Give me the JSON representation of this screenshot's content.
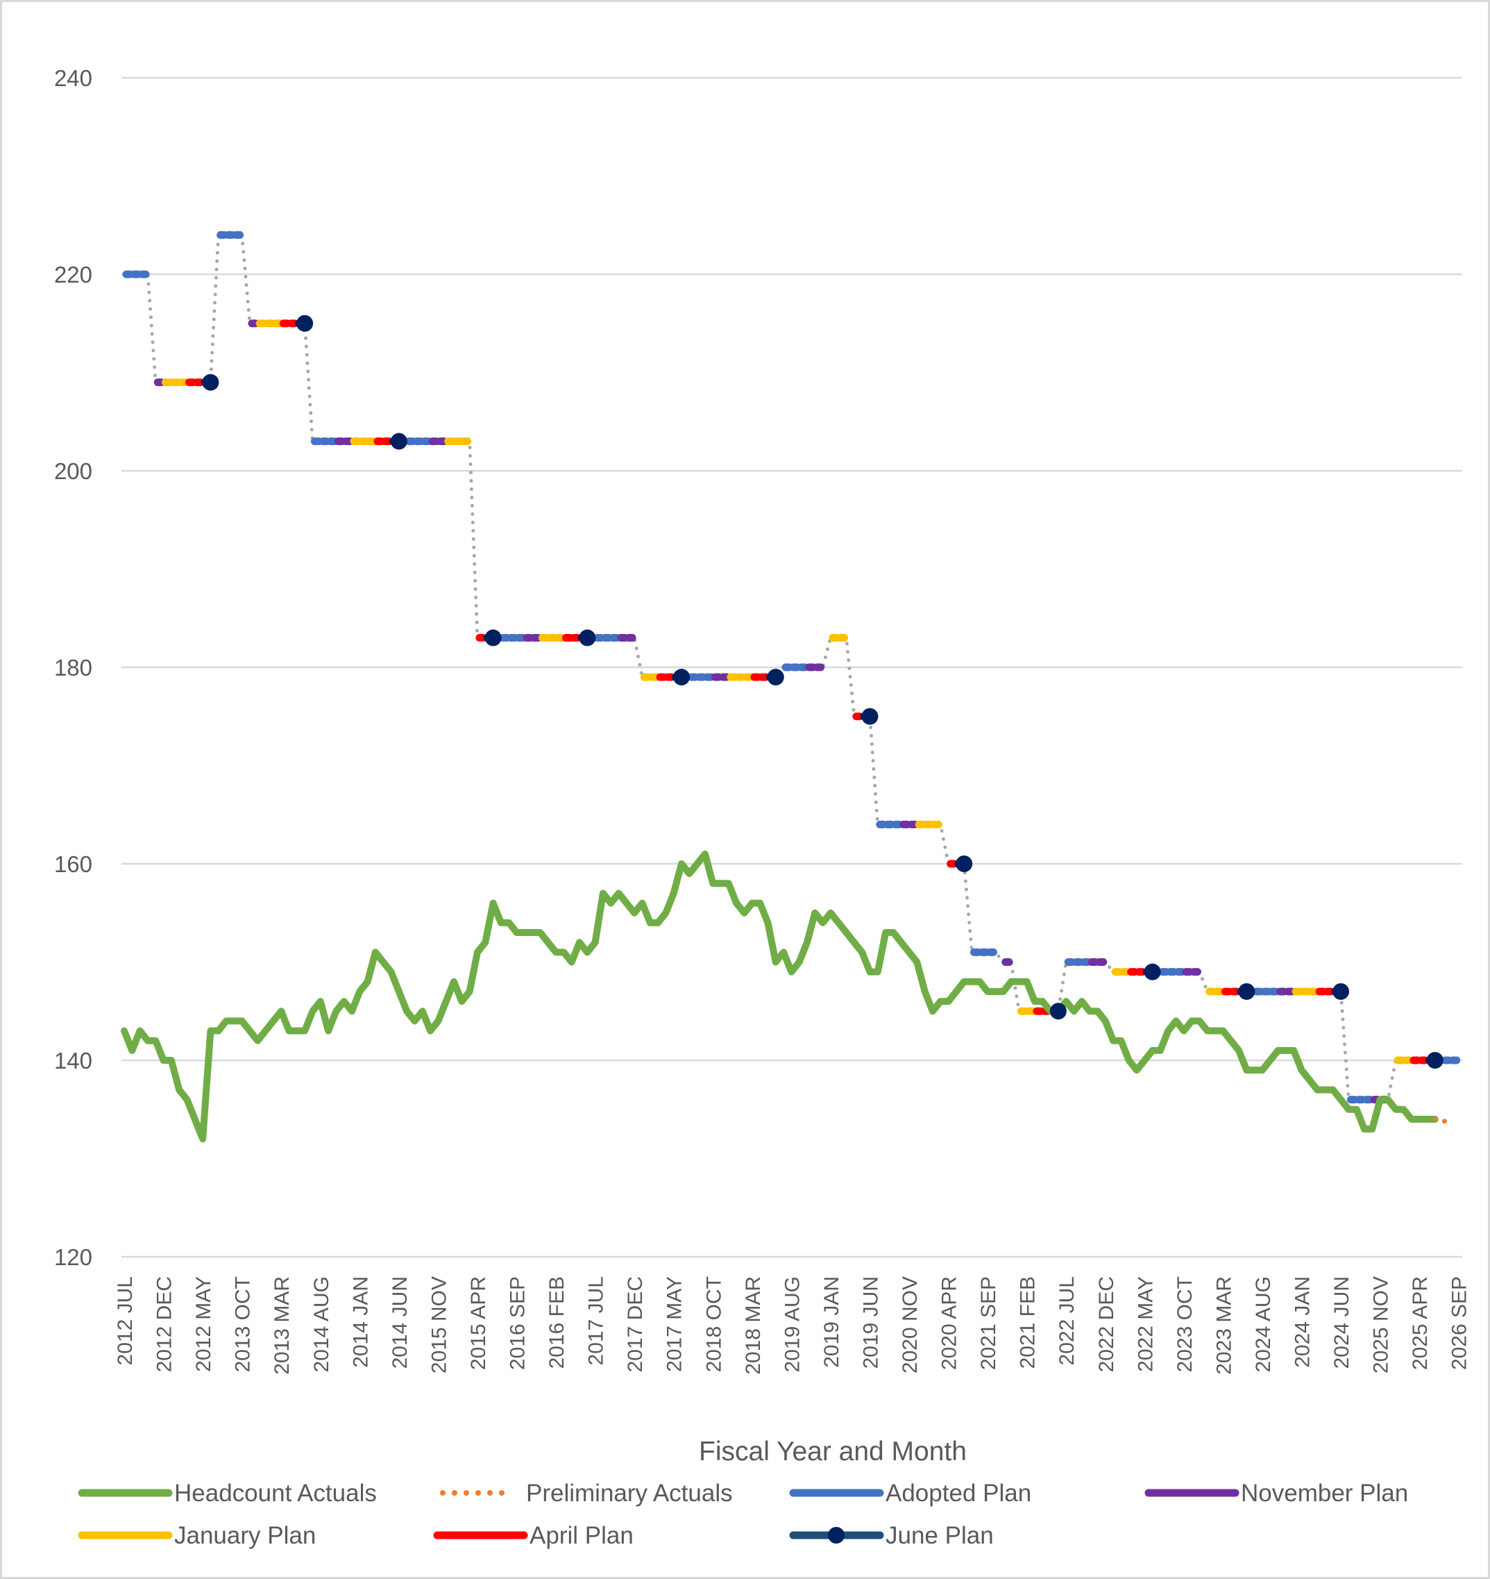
{
  "chart_data": {
    "type": "line",
    "title": "",
    "xlabel": "Fiscal Year and Month",
    "ylabel": "",
    "ylim": [
      120,
      240
    ],
    "yticks": [
      120,
      140,
      160,
      180,
      200,
      220,
      240
    ],
    "grid": true,
    "legend_position": "bottom",
    "x_tick_labels": [
      "2012 JUL",
      "2012 DEC",
      "2012 MAY",
      "2013 OCT",
      "2013 MAR",
      "2014 AUG",
      "2014 JAN",
      "2014 JUN",
      "2015 NOV",
      "2015 APR",
      "2016 SEP",
      "2016 FEB",
      "2017 JUL",
      "2017 DEC",
      "2017 MAY",
      "2018 OCT",
      "2018 MAR",
      "2019 AUG",
      "2019 JAN",
      "2019 JUN",
      "2020 NOV",
      "2020 APR",
      "2021 SEP",
      "2021 FEB",
      "2022 JUL",
      "2022 DEC",
      "2022 MAY",
      "2023 OCT",
      "2023 MAR",
      "2024 AUG",
      "2024 JAN",
      "2024 JUN",
      "2025 NOV",
      "2025 APR",
      "2026 SEP"
    ],
    "x_tick_every_months": 5,
    "n_months": 171,
    "colors": {
      "actuals": "#70ad47",
      "preliminary": "#ed7d31",
      "adopted": "#4472c4",
      "november": "#7030a0",
      "january": "#ffc000",
      "april": "#ff0000",
      "june": "#002060",
      "connector": "#a6a6a6",
      "grid": "#d9d9d9"
    },
    "series": [
      {
        "name": "Headcount Actuals",
        "key": "actuals",
        "start_month": 0,
        "values": [
          143,
          141,
          143,
          142,
          142,
          140,
          140,
          137,
          136,
          134,
          132,
          143,
          143,
          144,
          144,
          144,
          143,
          142,
          143,
          144,
          145,
          143,
          143,
          143,
          145,
          146,
          143,
          145,
          146,
          145,
          147,
          148,
          151,
          150,
          149,
          147,
          145,
          144,
          145,
          143,
          144,
          146,
          148,
          146,
          147,
          151,
          152,
          156,
          154,
          154,
          153,
          153,
          153,
          153,
          152,
          151,
          151,
          150,
          152,
          151,
          152,
          157,
          156,
          157,
          156,
          155,
          156,
          154,
          154,
          155,
          157,
          160,
          159,
          160,
          161,
          158,
          158,
          158,
          156,
          155,
          156,
          156,
          154,
          150,
          151,
          149,
          150,
          152,
          155,
          154,
          155,
          154,
          153,
          152,
          151,
          149,
          149,
          153,
          153,
          152,
          151,
          150,
          147,
          145,
          146,
          146,
          147,
          148,
          148,
          148,
          147,
          147,
          147,
          148,
          148,
          148,
          146,
          146,
          145,
          145,
          146,
          145,
          146,
          145,
          145,
          144,
          142,
          142,
          140,
          139,
          140,
          141,
          141,
          143,
          144,
          143,
          144,
          144,
          143,
          143,
          143,
          142,
          141,
          139,
          139,
          139,
          140,
          141,
          141,
          141,
          139,
          138,
          137,
          137,
          137,
          136,
          135,
          135,
          133,
          133,
          136,
          136,
          135,
          135,
          134,
          134,
          134,
          134
        ]
      },
      {
        "name": "Preliminary Actuals",
        "key": "preliminary",
        "start_month": 167,
        "values": [
          134,
          134,
          133
        ]
      }
    ],
    "plan_years": [
      {
        "start_month": 0,
        "adopted": 220,
        "november": 209,
        "january": 209,
        "april": 209,
        "june": 209
      },
      {
        "start_month": 12,
        "adopted": 224,
        "november": 215,
        "january": 215,
        "april": 215,
        "june": 215
      },
      {
        "start_month": 24,
        "adopted": 203,
        "november": 203,
        "january": 203,
        "april": 203,
        "june": 203
      },
      {
        "start_month": 36,
        "adopted": 203,
        "november": 203,
        "january": 203,
        "april": 183,
        "june": 183
      },
      {
        "start_month": 48,
        "adopted": 183,
        "november": 183,
        "january": 183,
        "april": 183,
        "june": 183
      },
      {
        "start_month": 60,
        "adopted": 183,
        "november": 183,
        "january": 179,
        "april": 179,
        "june": 179
      },
      {
        "start_month": 72,
        "adopted": 179,
        "november": 179,
        "january": 179,
        "april": 179,
        "june": 179
      },
      {
        "start_month": 84,
        "adopted": 180,
        "november": 180,
        "january": 183,
        "april": 175,
        "june": 175
      },
      {
        "start_month": 96,
        "adopted": 164,
        "november": 164,
        "january": 164,
        "april": 160,
        "june": 160
      },
      {
        "start_month": 108,
        "adopted": 151,
        "november": 150,
        "january": 145,
        "april": 145,
        "june": 145
      },
      {
        "start_month": 120,
        "adopted": 150,
        "november": 150,
        "january": 149,
        "april": 149,
        "june": 149
      },
      {
        "start_month": 132,
        "adopted": 149,
        "november": 149,
        "january": 147,
        "april": 147,
        "june": 147
      },
      {
        "start_month": 144,
        "adopted": 147,
        "november": 147,
        "january": 147,
        "april": 147,
        "june": 147
      },
      {
        "start_month": 156,
        "adopted": 136,
        "november": 136,
        "january": 140,
        "april": 140,
        "june": 140
      },
      {
        "start_month": 168,
        "adopted": 140
      }
    ],
    "legend": [
      {
        "label": "Headcount Actuals",
        "key": "actuals",
        "style": "solid"
      },
      {
        "label": "Preliminary Actuals",
        "key": "preliminary",
        "style": "dotted"
      },
      {
        "label": "Adopted Plan",
        "key": "adopted",
        "style": "solid"
      },
      {
        "label": "November Plan",
        "key": "november",
        "style": "solid"
      },
      {
        "label": "January Plan",
        "key": "january",
        "style": "solid"
      },
      {
        "label": "April Plan",
        "key": "april",
        "style": "solid"
      },
      {
        "label": "June Plan",
        "key": "june",
        "style": "marker"
      }
    ]
  }
}
